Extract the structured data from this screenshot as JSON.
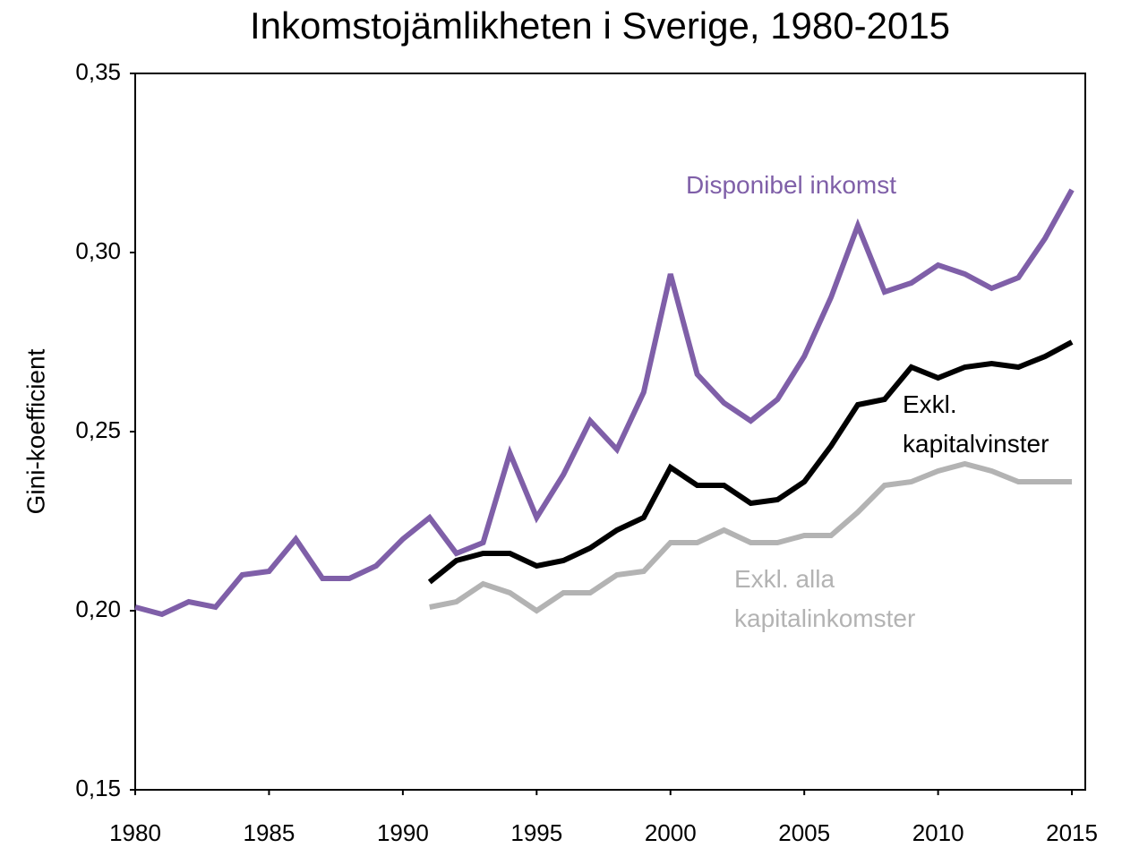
{
  "chart_data": {
    "type": "line",
    "title": "Inkomstojämlikheten i Sverige, 1980-2015",
    "y_label": "Gini-koefficient",
    "x": [
      1980,
      1981,
      1982,
      1983,
      1984,
      1985,
      1986,
      1987,
      1988,
      1989,
      1990,
      1991,
      1992,
      1993,
      1994,
      1995,
      1996,
      1997,
      1998,
      1999,
      2000,
      2001,
      2002,
      2003,
      2004,
      2005,
      2006,
      2007,
      2008,
      2009,
      2010,
      2011,
      2012,
      2013,
      2014,
      2015
    ],
    "xlim": [
      1980,
      2015.5
    ],
    "xticks": [
      1980,
      1985,
      1990,
      1995,
      2000,
      2005,
      2010,
      2015
    ],
    "ylim": [
      0.15,
      0.35
    ],
    "yticks": [
      {
        "value": 0.15,
        "label": "0,15"
      },
      {
        "value": 0.2,
        "label": "0,20"
      },
      {
        "value": 0.25,
        "label": "0,25"
      },
      {
        "value": 0.3,
        "label": "0,30"
      },
      {
        "value": 0.35,
        "label": "0,35"
      }
    ],
    "grid": false,
    "series": [
      {
        "name": "Disponibel inkomst",
        "color": "#7f5fa8",
        "values": [
          0.201,
          0.199,
          0.2025,
          0.201,
          0.21,
          0.211,
          0.22,
          0.209,
          0.209,
          0.2125,
          0.22,
          0.226,
          0.216,
          0.219,
          0.244,
          0.226,
          0.238,
          0.253,
          0.245,
          0.261,
          0.294,
          0.266,
          0.258,
          0.253,
          0.259,
          0.271,
          0.2875,
          0.3075,
          0.289,
          0.2915,
          0.2965,
          0.294,
          0.29,
          0.293,
          0.304,
          0.3175
        ]
      },
      {
        "name": "Exkl. kapitalvinster",
        "color": "#000000",
        "values": [
          null,
          null,
          null,
          null,
          null,
          null,
          null,
          null,
          null,
          null,
          null,
          0.208,
          0.214,
          0.216,
          0.216,
          0.2125,
          0.214,
          0.2175,
          0.2225,
          0.226,
          0.24,
          0.235,
          0.235,
          0.23,
          0.231,
          0.236,
          0.246,
          0.2575,
          0.259,
          0.268,
          0.265,
          0.268,
          0.269,
          0.268,
          0.271,
          0.275
        ]
      },
      {
        "name": "Exkl. alla kapitalinkomster",
        "color": "#b3b3b3",
        "values": [
          null,
          null,
          null,
          null,
          null,
          null,
          null,
          null,
          null,
          null,
          null,
          0.201,
          0.2025,
          0.2075,
          0.205,
          0.2,
          0.205,
          0.205,
          0.21,
          0.211,
          0.219,
          0.219,
          0.2225,
          0.219,
          0.219,
          0.221,
          0.221,
          0.2275,
          0.235,
          0.236,
          0.239,
          0.241,
          0.239,
          0.236,
          0.236,
          0.236
        ]
      }
    ]
  }
}
